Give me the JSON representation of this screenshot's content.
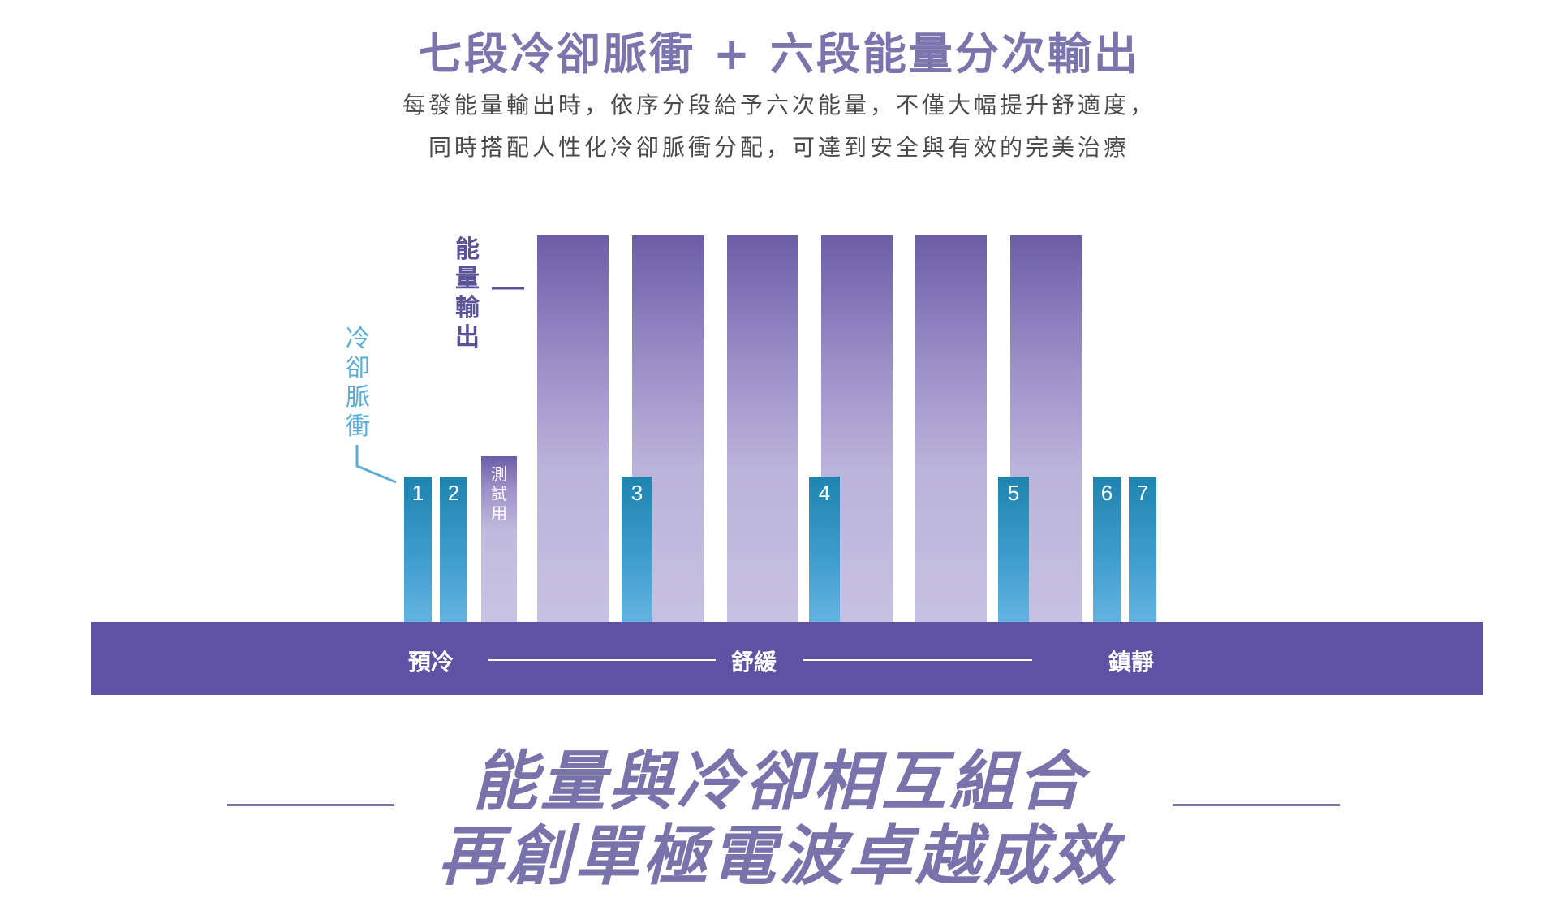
{
  "header": {
    "title": "七段冷卻脈衝 + 六段能量分次輸出",
    "subtitle_line1": "每發能量輸出時，依序分段給予六次能量，不僅大幅提升舒適度，",
    "subtitle_line2": "同時搭配人性化冷卻脈衝分配，可達到安全與有效的完美治療"
  },
  "diagram": {
    "energy_label": [
      "能",
      "量",
      "輸",
      "出"
    ],
    "cooling_label": [
      "冷",
      "卻",
      "脈",
      "衝"
    ],
    "test_label": [
      "測",
      "試",
      "用"
    ],
    "energy_pulses": 6,
    "cooling_pulses": [
      "1",
      "2",
      "3",
      "4",
      "5",
      "6",
      "7"
    ],
    "stages": {
      "precool": "預冷",
      "soothe": "舒緩",
      "calm": "鎮靜"
    },
    "colors": {
      "energy": "#6b5ea8",
      "cooling": "#2e8fbf",
      "baseline": "#5f52a3"
    }
  },
  "slogan": {
    "line1": "能量與冷卻相互組合",
    "line2": "再創單極電波卓越成效"
  }
}
